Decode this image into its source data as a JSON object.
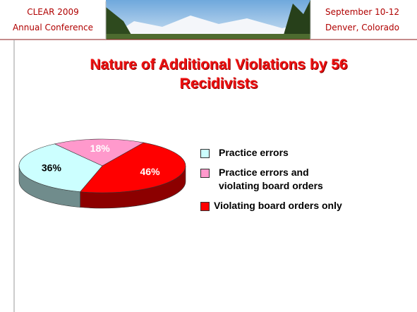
{
  "header": {
    "left": [
      "CLEAR 2009",
      "Annual Conference"
    ],
    "right": [
      "September 10-12",
      "Denver, Colorado"
    ]
  },
  "chart_data": {
    "type": "pie",
    "title": "Nature of Additional Violations by 56 Recidivists",
    "categories": [
      "Practice errors",
      "Practice errors and violating board orders",
      "Violating board orders only"
    ],
    "values": [
      36,
      18,
      46
    ],
    "value_labels": [
      "36%",
      "18%",
      "46%"
    ],
    "colors": [
      "#ccffff",
      "#ff99cc",
      "#ff0000"
    ],
    "legend": "right"
  }
}
